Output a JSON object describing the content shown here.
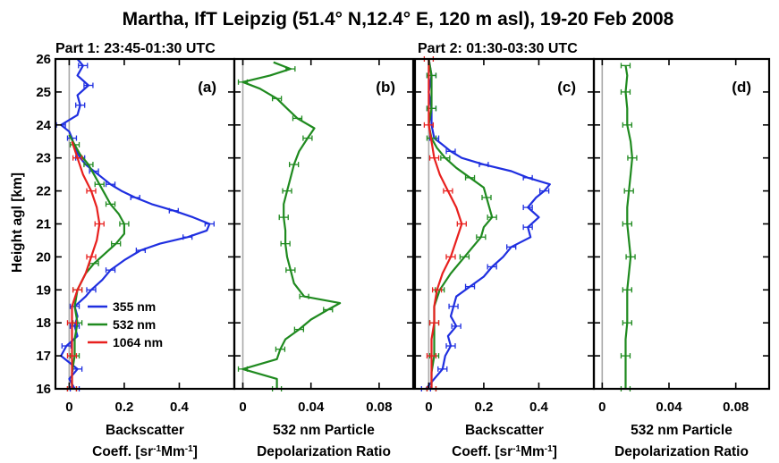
{
  "header": {
    "title": "Martha, IfT Leipzig (51.4° N,12.4° E, 120 m asl), 19-20 Feb 2008",
    "part1": "Part 1: 23:45-01:30 UTC",
    "part2": "Part 2: 01:30-03:30 UTC"
  },
  "colors": {
    "ch355": "#1f2fe0",
    "ch532": "#1f8a1f",
    "ch1064": "#e8201e",
    "zero_line": "#a8a8a8",
    "frame": "#000000"
  },
  "chart_data": [
    {
      "panel": "(a)",
      "type": "line",
      "subtitle": "Part 1: 23:45-01:30 UTC",
      "ylabel": "Height agl [km]",
      "xlabel_line1": "Backscatter",
      "xlabel_line2_pre": "Coeff. [sr",
      "xlabel_sup1": "-1",
      "xlabel_mid": "Mm",
      "xlabel_sup2": "-1",
      "xlabel_post": "]",
      "xlim": [
        -0.05,
        0.6
      ],
      "ylim": [
        16,
        26
      ],
      "xticks": [
        0,
        0.2,
        0.4
      ],
      "xtick_labels": [
        "0",
        "0.2",
        "0.4"
      ],
      "yticks": [
        16,
        17,
        18,
        19,
        20,
        21,
        22,
        23,
        24,
        25,
        26
      ],
      "ytick_labels": [
        "16",
        "17",
        "18",
        "19",
        "20",
        "21",
        "22",
        "23",
        "24",
        "25",
        "26"
      ],
      "legend": [
        "355 nm",
        "532 nm",
        "1064 nm"
      ],
      "series": [
        {
          "name": "355 nm",
          "height": [
            16.0,
            16.3,
            16.6,
            17.0,
            17.3,
            17.6,
            17.9,
            18.2,
            18.5,
            18.8,
            19.0,
            19.3,
            19.6,
            19.9,
            20.2,
            20.4,
            20.6,
            20.8,
            21.0,
            21.2,
            21.4,
            21.6,
            21.8,
            22.0,
            22.2,
            22.4,
            22.6,
            22.8,
            23.0,
            23.3,
            23.6,
            23.8,
            24.0,
            24.3,
            24.6,
            24.9,
            25.2,
            25.5,
            25.8,
            26.0
          ],
          "value": [
            0.02,
            0.0,
            0.03,
            -0.03,
            -0.01,
            0.03,
            0.02,
            0.03,
            0.02,
            0.06,
            0.08,
            0.12,
            0.15,
            0.2,
            0.26,
            0.33,
            0.43,
            0.5,
            0.51,
            0.45,
            0.38,
            0.3,
            0.24,
            0.19,
            0.15,
            0.12,
            0.09,
            0.06,
            0.04,
            0.02,
            0.01,
            0.0,
            -0.03,
            0.03,
            0.04,
            0.03,
            0.07,
            0.03,
            0.05,
            0.03
          ]
        },
        {
          "name": "532 nm",
          "height": [
            16.0,
            16.5,
            17.0,
            17.5,
            18.0,
            18.5,
            19.0,
            19.5,
            19.8,
            20.1,
            20.4,
            20.7,
            21.0,
            21.3,
            21.6,
            21.9,
            22.2,
            22.5,
            22.8,
            23.1,
            23.4,
            23.7
          ],
          "value": [
            0.01,
            0.01,
            0.02,
            0.02,
            0.03,
            0.02,
            0.03,
            0.06,
            0.09,
            0.13,
            0.17,
            0.2,
            0.2,
            0.18,
            0.15,
            0.13,
            0.11,
            0.09,
            0.07,
            0.04,
            0.02,
            0.0
          ]
        },
        {
          "name": "1064 nm",
          "height": [
            16.0,
            16.5,
            17.0,
            17.5,
            18.0,
            18.5,
            19.0,
            19.5,
            20.0,
            20.5,
            21.0,
            21.5,
            22.0,
            22.5,
            23.0,
            23.5
          ],
          "value": [
            0.01,
            0.01,
            0.01,
            0.01,
            0.01,
            0.01,
            0.03,
            0.06,
            0.08,
            0.1,
            0.11,
            0.1,
            0.08,
            0.05,
            0.03,
            0.01
          ]
        }
      ]
    },
    {
      "panel": "(b)",
      "type": "line",
      "xlabel_line1": "532 nm Particle",
      "xlabel_line2": "Depolarization Ratio",
      "xlim": [
        -0.005,
        0.1
      ],
      "ylim": [
        16,
        26
      ],
      "xticks": [
        0,
        0.04,
        0.08
      ],
      "xtick_labels": [
        "0",
        "0.04",
        "0.08"
      ],
      "yticks": [
        16,
        17,
        18,
        19,
        20,
        21,
        22,
        23,
        24,
        25,
        26
      ],
      "series": [
        {
          "name": "532 nm",
          "height": [
            16.0,
            16.3,
            16.6,
            16.9,
            17.2,
            17.5,
            17.8,
            18.1,
            18.4,
            18.6,
            18.8,
            19.2,
            19.6,
            20.0,
            20.4,
            20.8,
            21.2,
            21.6,
            22.0,
            22.4,
            22.8,
            23.2,
            23.6,
            23.9,
            24.2,
            24.5,
            24.8,
            25.1,
            25.3,
            25.5,
            25.7,
            25.9
          ],
          "value": [
            0.02,
            0.02,
            0.0,
            0.02,
            0.022,
            0.025,
            0.033,
            0.04,
            0.05,
            0.057,
            0.036,
            0.03,
            0.028,
            0.026,
            0.025,
            0.025,
            0.024,
            0.024,
            0.026,
            0.028,
            0.03,
            0.033,
            0.038,
            0.042,
            0.032,
            0.026,
            0.02,
            0.01,
            0.0,
            0.016,
            0.028,
            0.018
          ]
        }
      ]
    },
    {
      "panel": "(c)",
      "type": "line",
      "subtitle": "Part 2: 01:30-03:30 UTC",
      "xlabel_line1": "Backscatter",
      "xlabel_line2_pre": "Coeff. [sr",
      "xlabel_sup1": "-1",
      "xlabel_mid": "Mm",
      "xlabel_sup2": "-1",
      "xlabel_post": "]",
      "xlim": [
        -0.05,
        0.6
      ],
      "ylim": [
        16,
        26
      ],
      "xticks": [
        0,
        0.2,
        0.4
      ],
      "xtick_labels": [
        "0",
        "0.2",
        "0.4"
      ],
      "yticks": [
        16,
        17,
        18,
        19,
        20,
        21,
        22,
        23,
        24,
        25,
        26
      ],
      "series": [
        {
          "name": "355 nm",
          "height": [
            16.0,
            16.3,
            16.6,
            17.0,
            17.3,
            17.6,
            17.9,
            18.2,
            18.5,
            18.8,
            19.1,
            19.4,
            19.7,
            20.0,
            20.3,
            20.6,
            20.9,
            21.2,
            21.5,
            21.8,
            22.0,
            22.2,
            22.4,
            22.6,
            22.8,
            23.0,
            23.2,
            23.4,
            23.6,
            24.0,
            24.5,
            25.0,
            25.5,
            26.0
          ],
          "value": [
            -0.01,
            0.02,
            0.05,
            0.06,
            0.08,
            0.07,
            0.1,
            0.08,
            0.09,
            0.1,
            0.15,
            0.2,
            0.23,
            0.27,
            0.3,
            0.37,
            0.36,
            0.4,
            0.36,
            0.39,
            0.42,
            0.44,
            0.36,
            0.3,
            0.2,
            0.12,
            0.08,
            0.05,
            0.02,
            0.01,
            0.01,
            0.0,
            0.01,
            0.0
          ]
        },
        {
          "name": "532 nm",
          "height": [
            16.0,
            16.5,
            17.0,
            17.5,
            18.0,
            18.5,
            19.0,
            19.5,
            20.0,
            20.3,
            20.6,
            20.9,
            21.2,
            21.5,
            21.8,
            22.1,
            22.4,
            22.7,
            23.0,
            23.3,
            23.6,
            24.0,
            24.5,
            25.0,
            25.5,
            26.0
          ],
          "value": [
            0.01,
            0.01,
            0.02,
            0.02,
            0.02,
            0.02,
            0.04,
            0.08,
            0.13,
            0.16,
            0.19,
            0.2,
            0.23,
            0.22,
            0.21,
            0.2,
            0.15,
            0.1,
            0.06,
            0.03,
            0.01,
            0.0,
            0.01,
            0.01,
            0.01,
            0.0
          ]
        },
        {
          "name": "1064 nm",
          "height": [
            16.0,
            16.5,
            17.0,
            17.5,
            18.0,
            18.5,
            19.0,
            19.5,
            20.0,
            20.5,
            21.0,
            21.5,
            22.0,
            22.5,
            23.0,
            23.5,
            24.0,
            25.0,
            26.0
          ],
          "value": [
            0.01,
            0.01,
            0.01,
            0.01,
            0.02,
            0.02,
            0.03,
            0.05,
            0.08,
            0.1,
            0.12,
            0.1,
            0.07,
            0.04,
            0.02,
            0.01,
            0.0,
            0.0,
            0.0
          ]
        }
      ]
    },
    {
      "panel": "(d)",
      "type": "line",
      "xlabel_line1": "532 nm Particle",
      "xlabel_line2": "Depolarization Ratio",
      "xlim": [
        -0.005,
        0.1
      ],
      "ylim": [
        16,
        26
      ],
      "xticks": [
        0,
        0.04,
        0.08
      ],
      "xtick_labels": [
        "0",
        "0.04",
        "0.08"
      ],
      "yticks": [
        16,
        17,
        18,
        19,
        20,
        21,
        22,
        23,
        24,
        25,
        26
      ],
      "series": [
        {
          "name": "532 nm",
          "height": [
            16.0,
            16.5,
            17.0,
            17.5,
            18.0,
            18.5,
            19.0,
            19.5,
            20.0,
            20.5,
            21.0,
            21.5,
            22.0,
            22.5,
            23.0,
            23.5,
            24.0,
            24.5,
            25.0,
            25.5,
            25.8
          ],
          "value": [
            0.014,
            0.014,
            0.014,
            0.014,
            0.015,
            0.015,
            0.015,
            0.016,
            0.017,
            0.016,
            0.015,
            0.015,
            0.016,
            0.017,
            0.018,
            0.017,
            0.015,
            0.015,
            0.014,
            0.015,
            0.014
          ]
        }
      ]
    }
  ]
}
